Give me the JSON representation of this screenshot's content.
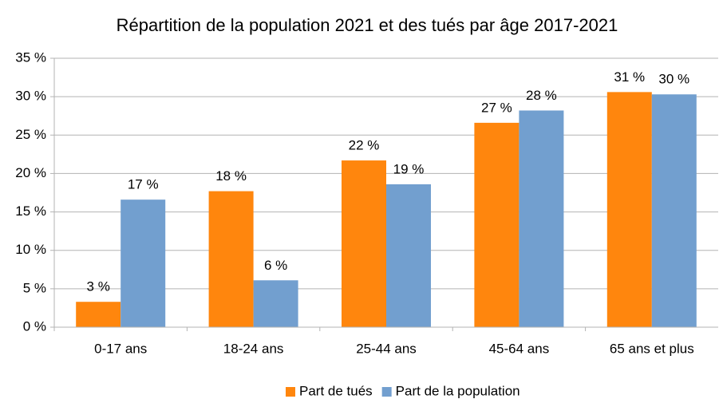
{
  "chart_data": {
    "type": "bar",
    "title": "Répartition de la population 2021 et des tués par âge 2017-2021",
    "categories": [
      "0-17 ans",
      "18-24 ans",
      "25-44 ans",
      "45-64 ans",
      "65 ans et plus"
    ],
    "series": [
      {
        "name": "Part de tués",
        "color": "#ff860d",
        "values": [
          3.3,
          17.7,
          21.7,
          26.6,
          30.6
        ],
        "value_labels": [
          "3 %",
          "18 %",
          "22 %",
          "27 %",
          "31 %"
        ]
      },
      {
        "name": "Part de la population",
        "color": "#729fcf",
        "values": [
          16.6,
          6.1,
          18.6,
          28.2,
          30.3
        ],
        "value_labels": [
          "17 %",
          "6 %",
          "19 %",
          "28 %",
          "30 %"
        ]
      }
    ],
    "ylim": [
      0,
      35
    ],
    "yticks": [
      {
        "value": 0,
        "label": "0 %"
      },
      {
        "value": 5,
        "label": "5 %"
      },
      {
        "value": 10,
        "label": "10 %"
      },
      {
        "value": 15,
        "label": "15 %"
      },
      {
        "value": 20,
        "label": "20 %"
      },
      {
        "value": 25,
        "label": "25 %"
      },
      {
        "value": 30,
        "label": "30 %"
      },
      {
        "value": 35,
        "label": "35 %"
      }
    ],
    "grid": true,
    "legend": "bottom"
  }
}
